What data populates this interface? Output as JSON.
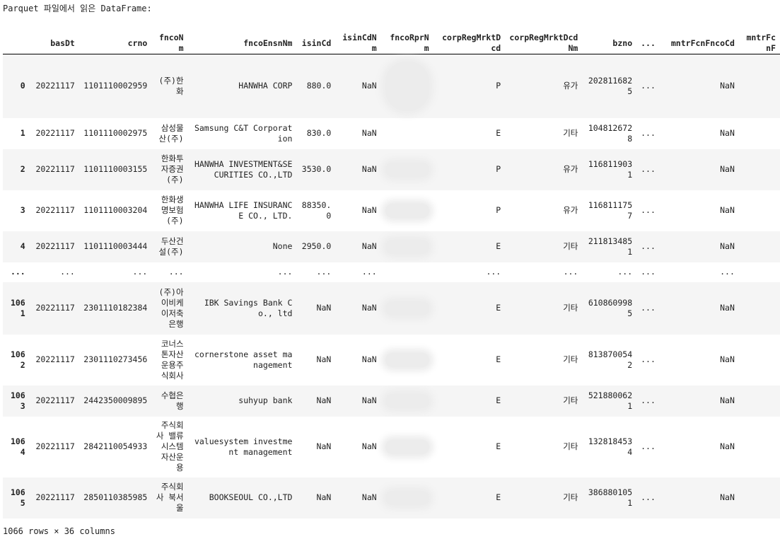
{
  "output": {
    "header": "Parquet 파일에서 읽은 DataFrame:",
    "footer": "1066 rows × 36 columns"
  },
  "table": {
    "columns": [
      "",
      "basDt",
      "crno",
      "fncoNm",
      "fncoEnsnNm",
      "isinCd",
      "isinCdNm",
      "fncoRprNm",
      "corpRegMrktDcd",
      "corpRegMrktDcdNm",
      "bzno",
      "...",
      "mntrFcnFncoCd",
      "mntrFcnF"
    ],
    "rows": [
      [
        "0",
        "20221117",
        "1101110002959",
        "(주)한화",
        "HANWHA CORP",
        "880.0",
        "NaN",
        "",
        "P",
        "유가",
        "2028116825",
        "...",
        "NaN",
        ""
      ],
      [
        "1",
        "20221117",
        "1101110002975",
        "삼성물산(주)",
        "Samsung C&T Corporation",
        "830.0",
        "NaN",
        "",
        "E",
        "기타",
        "1048126728",
        "...",
        "NaN",
        ""
      ],
      [
        "2",
        "20221117",
        "1101110003155",
        "한화투자증권(주)",
        "HANWHA INVESTMENT&SECURITIES CO.,LTD",
        "3530.0",
        "NaN",
        "",
        "P",
        "유가",
        "1168119031",
        "...",
        "NaN",
        ""
      ],
      [
        "3",
        "20221117",
        "1101110003204",
        "한화생명보험(주)",
        "HANWHA LIFE INSURANCE CO., LTD.",
        "88350.0",
        "NaN",
        "",
        "P",
        "유가",
        "1168111757",
        "...",
        "NaN",
        ""
      ],
      [
        "4",
        "20221117",
        "1101110003444",
        "두산건설(주)",
        "None",
        "2950.0",
        "NaN",
        "",
        "E",
        "기타",
        "2118134851",
        "...",
        "NaN",
        ""
      ],
      [
        "...",
        "...",
        "...",
        "...",
        "...",
        "...",
        "...",
        "",
        "...",
        "...",
        "...",
        "...",
        "...",
        ""
      ],
      [
        "1061",
        "20221117",
        "2301110182384",
        "(주)아이비케이저축은행",
        "IBK Savings Bank Co., ltd",
        "NaN",
        "NaN",
        "",
        "E",
        "기타",
        "6108609985",
        "...",
        "NaN",
        ""
      ],
      [
        "1062",
        "20221117",
        "2301110273456",
        "코너스톤자산운용주식회사",
        "cornerstone asset management",
        "NaN",
        "NaN",
        "",
        "E",
        "기타",
        "8138700542",
        "...",
        "NaN",
        ""
      ],
      [
        "1063",
        "20221117",
        "2442350009895",
        "수협은행",
        "suhyup bank",
        "NaN",
        "NaN",
        "",
        "E",
        "기타",
        "5218800621",
        "...",
        "NaN",
        ""
      ],
      [
        "1064",
        "20221117",
        "2842110054933",
        "주식회사 밸류시스템자산운용",
        "valuesystem investment management",
        "NaN",
        "NaN",
        "",
        "E",
        "기타",
        "1328184534",
        "...",
        "NaN",
        ""
      ],
      [
        "1065",
        "20221117",
        "2850110385985",
        "주식회사 북서울",
        "BOOKSEOUL CO.,LTD",
        "NaN",
        "NaN",
        "",
        "E",
        "기타",
        "3868801051",
        "...",
        "NaN",
        ""
      ]
    ]
  }
}
